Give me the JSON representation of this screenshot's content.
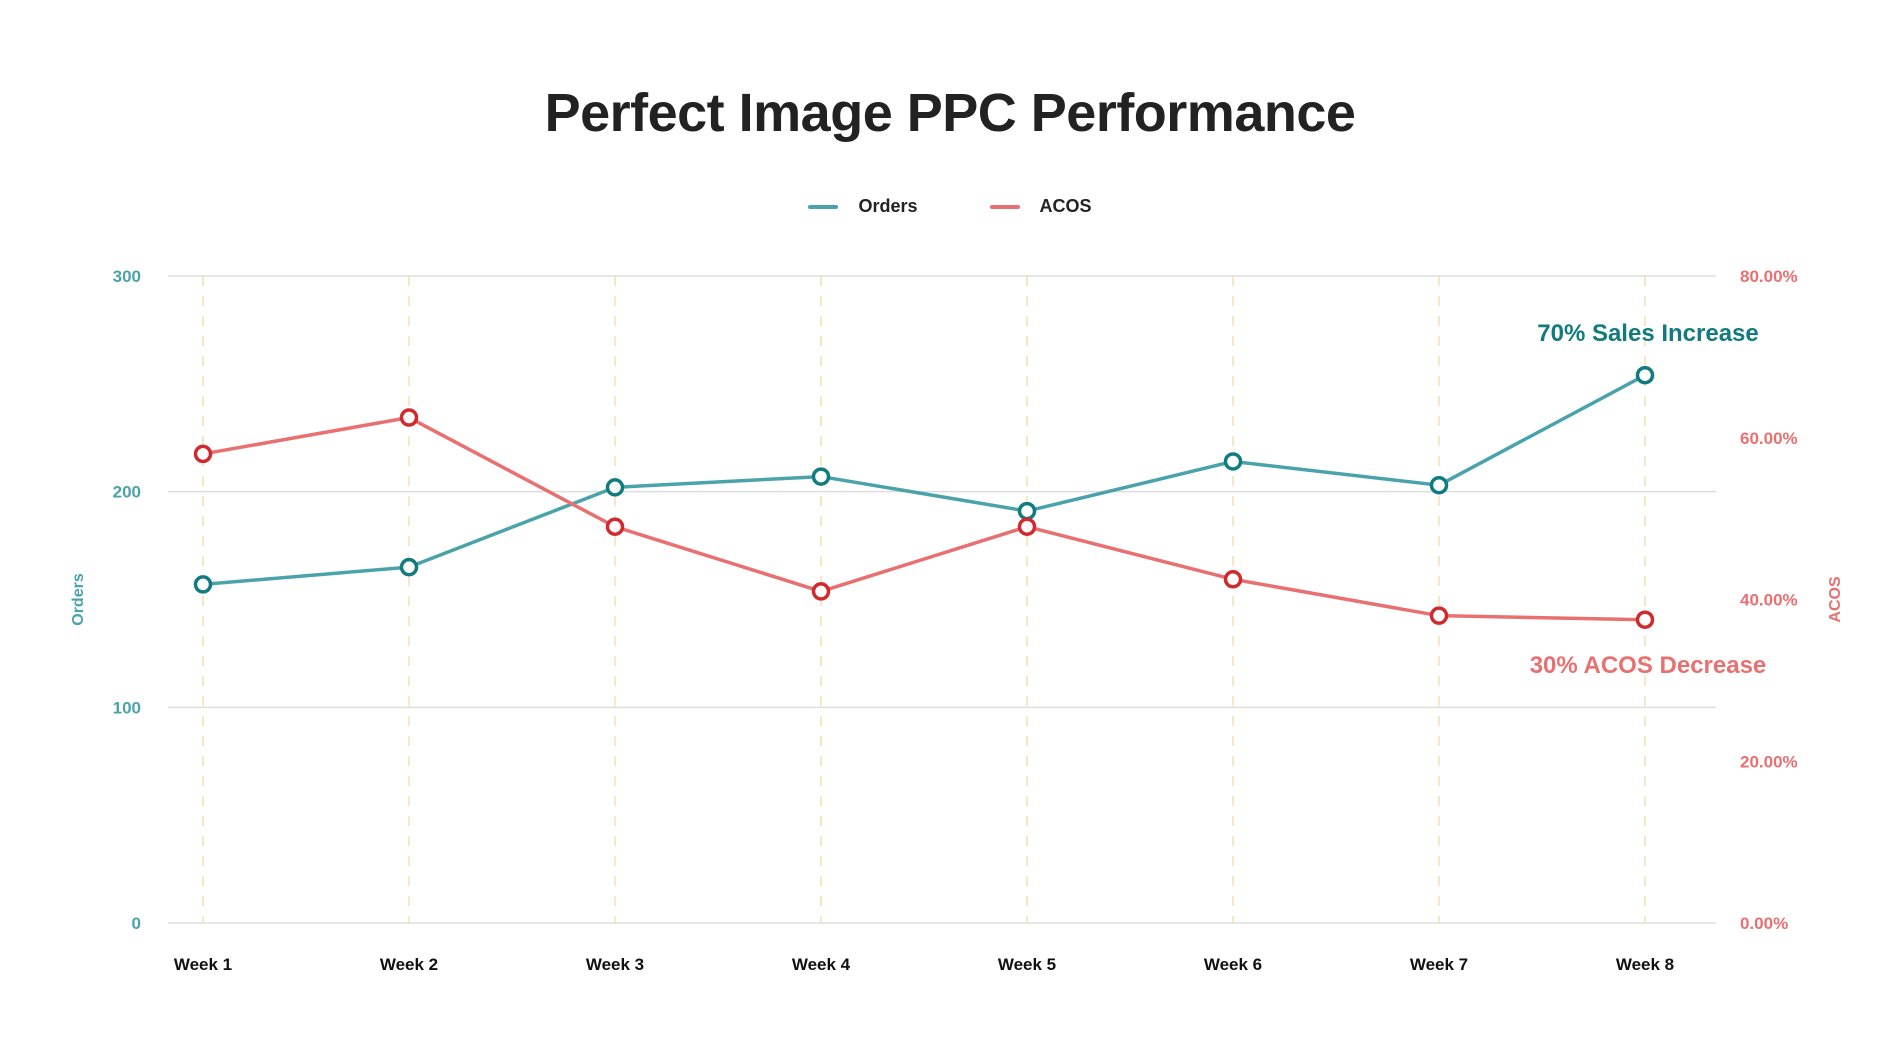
{
  "chart_data": {
    "type": "line",
    "title": "Perfect Image PPC Performance",
    "categories": [
      "Week 1",
      "Week 2",
      "Week 3",
      "Week 4",
      "Week 5",
      "Week 6",
      "Week 7",
      "Week 8"
    ],
    "series": [
      {
        "name": "Orders",
        "axis": "left",
        "color": "#4aa3ab",
        "marker_color": "#117b80",
        "values": [
          157,
          165,
          202,
          207,
          191,
          214,
          203,
          254
        ]
      },
      {
        "name": "ACOS",
        "axis": "right",
        "color": "#e97070",
        "marker_color": "#cf2a2e",
        "values": [
          0.58,
          0.625,
          0.49,
          0.41,
          0.49,
          0.425,
          0.38,
          0.375
        ]
      }
    ],
    "ylabel": "Orders",
    "ylabel_right": "ACOS",
    "ylim": [
      0,
      300
    ],
    "ylim_right": [
      0,
      0.8
    ],
    "yticks": [
      "0",
      "100",
      "200",
      "300"
    ],
    "yticks_right": [
      "0.00%",
      "20.00%",
      "40.00%",
      "60.00%",
      "80.00%"
    ],
    "legend_position": "top-center",
    "grid": true,
    "annotations": [
      {
        "text": "70% Sales Increase",
        "color": "#117b80"
      },
      {
        "text": "30% ACOS Decrease",
        "color": "#e97070"
      }
    ]
  }
}
